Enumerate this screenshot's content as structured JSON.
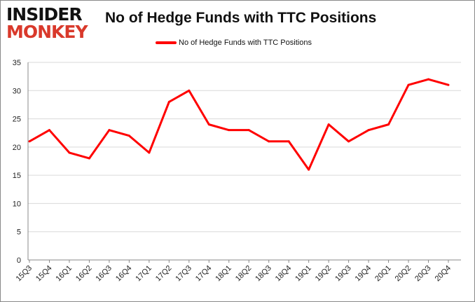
{
  "logo": {
    "line1": "INSIDER",
    "line2": "MONKEY"
  },
  "chart_data": {
    "type": "line",
    "title": "No of Hedge Funds with TTC Positions",
    "xlabel": "",
    "ylabel": "",
    "categories": [
      "15Q3",
      "15Q4",
      "16Q1",
      "16Q2",
      "16Q3",
      "16Q4",
      "17Q1",
      "17Q2",
      "17Q3",
      "17Q4",
      "18Q1",
      "18Q2",
      "18Q3",
      "18Q4",
      "19Q1",
      "19Q2",
      "19Q3",
      "19Q4",
      "20Q1",
      "20Q2",
      "20Q3",
      "20Q4"
    ],
    "series": [
      {
        "name": "No of Hedge Funds with TTC Positions",
        "color": "#ff0000",
        "values": [
          21,
          23,
          19,
          18,
          23,
          22,
          19,
          28,
          30,
          24,
          23,
          23,
          21,
          21,
          16,
          24,
          21,
          23,
          24,
          31,
          32,
          31
        ]
      }
    ],
    "ylim": [
      0,
      35
    ],
    "yticks": [
      0,
      5,
      10,
      15,
      20,
      25,
      30,
      35
    ],
    "grid": true,
    "legend": "top-center"
  }
}
